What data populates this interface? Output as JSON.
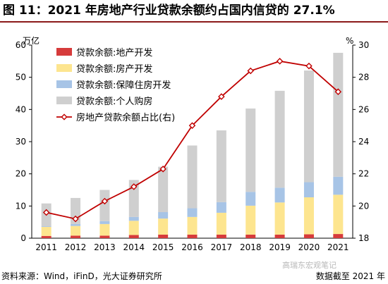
{
  "header": {
    "title": "图 11：2021 年房地产行业贷款余额约占国内信贷的 27.1%"
  },
  "footer": {
    "source": "资料来源：Wind，iFinD，光大证券研究所",
    "as_of": "数据截至 2021 年"
  },
  "watermark": "高瑞东宏观笔记",
  "colors": {
    "land": "#d63b3b",
    "property": "#fde58f",
    "housing": "#a7c4e6",
    "personal": "#cfcfcf",
    "ratio": "#c00000"
  },
  "chart_data": {
    "type": "bar",
    "categories": [
      "2011",
      "2012",
      "2013",
      "2014",
      "2015",
      "2016",
      "2017",
      "2018",
      "2019",
      "2020",
      "2021"
    ],
    "y_left": {
      "unit": "万亿",
      "ylim": [
        0,
        60
      ],
      "ticks": [
        "0",
        "10",
        "20",
        "30",
        "40",
        "50",
        "60"
      ]
    },
    "y_right": {
      "unit": "%",
      "ylim": [
        18,
        30
      ],
      "ticks": [
        "18",
        "20",
        "22",
        "24",
        "26",
        "28",
        "30"
      ]
    },
    "series": [
      {
        "name": "贷款余额:地产开发",
        "type": "stacked-bar",
        "color": "#d63b3b",
        "values": [
          0.7,
          0.8,
          0.8,
          1.0,
          1.1,
          1.1,
          1.1,
          1.1,
          1.1,
          1.2,
          1.3
        ]
      },
      {
        "name": "贷款余额:房产开发",
        "type": "stacked-bar",
        "color": "#fde58f",
        "values": [
          2.8,
          3.0,
          3.6,
          4.4,
          5.0,
          5.5,
          6.8,
          9.0,
          10.0,
          11.5,
          12.2
        ]
      },
      {
        "name": "贷款余额:保障住房开发",
        "type": "stacked-bar",
        "color": "#a7c4e6",
        "values": [
          0.2,
          0.6,
          0.9,
          1.2,
          2.0,
          2.7,
          3.3,
          4.3,
          4.6,
          4.7,
          5.6
        ]
      },
      {
        "name": "贷款余额:个人购房",
        "type": "stacked-bar",
        "color": "#cfcfcf",
        "values": [
          7.1,
          8.1,
          9.7,
          11.5,
          14.1,
          19.5,
          22.3,
          25.9,
          30.1,
          34.7,
          38.5
        ]
      },
      {
        "name": "房地产贷款余额占比(右)",
        "type": "line",
        "axis": "right",
        "color": "#c00000",
        "values": [
          19.6,
          19.2,
          20.3,
          21.2,
          22.3,
          25.0,
          26.8,
          28.4,
          29.0,
          28.7,
          27.1
        ]
      }
    ],
    "legend": {
      "position": "top-left"
    },
    "grid": false
  }
}
